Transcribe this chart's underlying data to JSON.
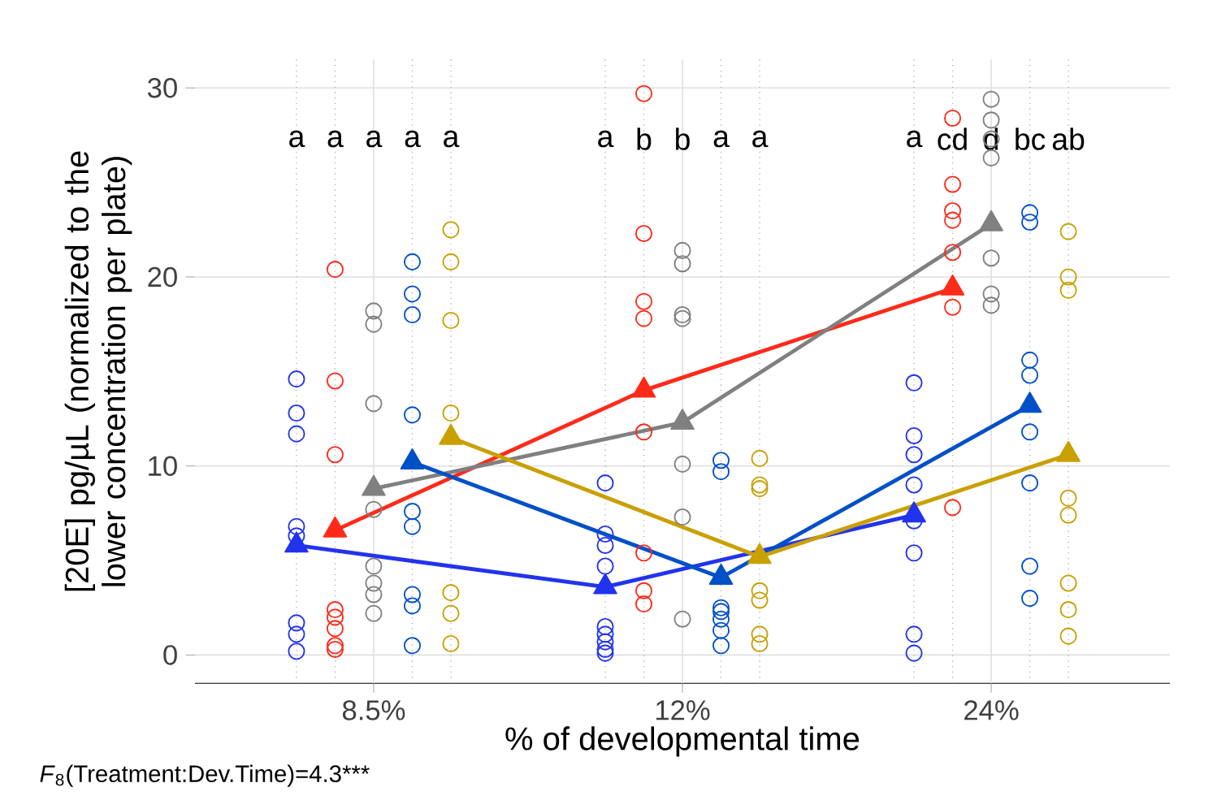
{
  "chart_data": {
    "type": "scatter",
    "xlabel": "% of developmental time",
    "ylabel": "[20E] pg/µL (normalized to the lower concentration per plate)",
    "categories": [
      null,
      null,
      "8.5%",
      null,
      null,
      null,
      null,
      null,
      null,
      null,
      "12%",
      null,
      null,
      null,
      null,
      null,
      null,
      null,
      "24%",
      null,
      null
    ],
    "ylim": [
      -1.5,
      31.5
    ],
    "yticks": [
      0,
      10,
      20,
      30
    ],
    "grid": true,
    "marker": "circle",
    "series": [
      {
        "colors": [
          "#2233ee",
          "#ff2a1a",
          "#808080",
          "#0050c8",
          "#c9a000",
          null,
          null,
          null,
          "#2233ee",
          "#ff2a1a",
          "#808080",
          "#0050c8",
          "#c9a000",
          null,
          null,
          null,
          "#2233ee",
          "#ff2a1a",
          "#808080",
          "#0050c8",
          "#c9a000"
        ],
        "values": [
          14.6,
          20.4,
          18.2,
          20.8,
          22.5,
          null,
          null,
          null,
          9.1,
          29.7,
          21.4,
          10.3,
          10.4,
          null,
          null,
          null,
          14.4,
          28.4,
          29.4,
          23.4,
          22.4
        ]
      },
      {
        "colors": [
          "#2233ee",
          "#ff2a1a",
          "#808080",
          "#0050c8",
          "#c9a000",
          null,
          null,
          null,
          "#2233ee",
          "#ff2a1a",
          "#808080",
          "#0050c8",
          "#c9a000",
          null,
          null,
          null,
          "#2233ee",
          "#ff2a1a",
          "#808080",
          "#0050c8",
          "#c9a000"
        ],
        "values": [
          12.8,
          14.5,
          17.5,
          19.1,
          20.8,
          null,
          null,
          null,
          6.4,
          22.3,
          20.7,
          9.7,
          9.0,
          null,
          null,
          null,
          11.6,
          24.9,
          28.3,
          22.9,
          20.0
        ]
      },
      {
        "colors": [
          "#2233ee",
          "#ff2a1a",
          "#808080",
          "#0050c8",
          "#c9a000",
          null,
          null,
          null,
          "#2233ee",
          "#ff2a1a",
          "#808080",
          "#0050c8",
          "#c9a000",
          null,
          null,
          null,
          "#2233ee",
          "#ff2a1a",
          "#808080",
          "#0050c8",
          "#c9a000"
        ],
        "values": [
          11.7,
          10.6,
          13.3,
          18.0,
          17.7,
          null,
          null,
          null,
          5.8,
          18.7,
          18.0,
          2.5,
          8.8,
          null,
          null,
          null,
          10.6,
          23.5,
          27.3,
          15.6,
          19.3
        ]
      },
      {
        "colors": [
          "#2233ee",
          "#ff2a1a",
          "#808080",
          "#0050c8",
          "#c9a000",
          null,
          null,
          null,
          "#2233ee",
          "#ff2a1a",
          "#808080",
          "#0050c8",
          "#c9a000",
          null,
          null,
          null,
          "#2233ee",
          "#ff2a1a",
          "#808080",
          "#0050c8",
          "#c9a000"
        ],
        "values": [
          6.8,
          2.4,
          7.7,
          12.7,
          12.8,
          null,
          null,
          null,
          4.7,
          17.8,
          17.8,
          2.3,
          3.4,
          null,
          null,
          null,
          9.0,
          23.0,
          26.3,
          14.8,
          8.3
        ]
      },
      {
        "colors": [
          "#2233ee",
          "#ff2a1a",
          "#808080",
          "#0050c8",
          "#c9a000",
          null,
          null,
          null,
          "#2233ee",
          "#ff2a1a",
          "#808080",
          "#0050c8",
          "#c9a000",
          null,
          null,
          null,
          "#2233ee",
          "#ff2a1a",
          "#808080",
          "#0050c8",
          "#c9a000"
        ],
        "values": [
          6.3,
          2.0,
          4.7,
          7.6,
          3.3,
          null,
          null,
          null,
          1.5,
          11.8,
          10.1,
          1.9,
          2.9,
          null,
          null,
          null,
          7.1,
          21.3,
          21.0,
          11.8,
          7.4
        ]
      },
      {
        "colors": [
          "#2233ee",
          "#ff2a1a",
          "#808080",
          "#0050c8",
          "#c9a000",
          null,
          null,
          null,
          "#2233ee",
          "#ff2a1a",
          "#808080",
          "#0050c8",
          "#c9a000",
          null,
          null,
          null,
          "#2233ee",
          "#ff2a1a",
          "#808080",
          "#0050c8",
          "#c9a000"
        ],
        "values": [
          1.7,
          1.4,
          3.8,
          6.8,
          2.2,
          null,
          null,
          null,
          1.1,
          5.4,
          7.3,
          1.3,
          1.1,
          null,
          null,
          null,
          5.4,
          18.4,
          19.1,
          9.1,
          3.8
        ]
      },
      {
        "colors": [
          "#2233ee",
          "#ff2a1a",
          "#808080",
          "#0050c8",
          "#c9a000",
          null,
          null,
          null,
          "#2233ee",
          "#ff2a1a",
          "#808080",
          "#0050c8",
          "#c9a000",
          null,
          null,
          null,
          "#2233ee",
          "#ff2a1a",
          "#808080",
          "#0050c8",
          "#c9a000"
        ],
        "values": [
          1.1,
          0.5,
          3.2,
          3.2,
          0.6,
          null,
          null,
          null,
          0.7,
          3.4,
          1.9,
          0.5,
          0.6,
          null,
          null,
          null,
          1.1,
          7.8,
          18.5,
          4.7,
          2.4
        ]
      },
      {
        "colors": [
          "#2233ee",
          "#ff2a1a",
          "#808080",
          "#0050c8",
          null,
          null,
          null,
          null,
          "#2233ee",
          "#ff2a1a",
          null,
          null,
          null,
          null,
          null,
          null,
          "#2233ee",
          null,
          null,
          "#0050c8",
          "#c9a000"
        ],
        "values": [
          0.2,
          0.3,
          2.2,
          2.6,
          null,
          null,
          null,
          null,
          0.3,
          2.7,
          null,
          null,
          null,
          null,
          null,
          null,
          0.1,
          null,
          null,
          3.0,
          1.0
        ]
      },
      {
        "colors": [
          null,
          null,
          null,
          "#0050c8",
          null,
          null,
          null,
          null,
          "#2233ee",
          null,
          null,
          null,
          null,
          null,
          null,
          null,
          null,
          null,
          null,
          null,
          null
        ],
        "values": [
          null,
          null,
          null,
          0.5,
          null,
          null,
          null,
          null,
          0.1,
          null,
          null,
          null,
          null,
          null,
          null,
          null,
          null,
          null,
          null,
          null,
          null
        ]
      },
      {
        "type": "line",
        "marker": "triangle",
        "color": "#2233ee",
        "values": [
          5.8,
          null,
          null,
          null,
          null,
          null,
          null,
          null,
          3.6,
          null,
          null,
          null,
          null,
          null,
          null,
          null,
          7.4,
          null,
          null,
          null,
          null
        ]
      },
      {
        "type": "line",
        "marker": "triangle",
        "color": "#ff2a1a",
        "values": [
          null,
          6.6,
          null,
          null,
          null,
          null,
          null,
          null,
          null,
          14.0,
          null,
          null,
          null,
          null,
          null,
          null,
          null,
          19.4,
          null,
          null,
          null
        ]
      },
      {
        "type": "line",
        "marker": "triangle",
        "color": "#808080",
        "values": [
          null,
          null,
          8.8,
          null,
          null,
          null,
          null,
          null,
          null,
          null,
          12.3,
          null,
          null,
          null,
          null,
          null,
          null,
          null,
          22.8,
          null,
          null
        ]
      },
      {
        "type": "line",
        "marker": "triangle",
        "color": "#0050c8",
        "values": [
          null,
          null,
          null,
          10.2,
          null,
          null,
          null,
          null,
          null,
          null,
          null,
          4.1,
          null,
          null,
          null,
          null,
          null,
          null,
          null,
          13.2,
          null
        ]
      },
      {
        "type": "line",
        "marker": "triangle",
        "color": "#c9a000",
        "values": [
          null,
          null,
          null,
          null,
          11.5,
          null,
          null,
          null,
          null,
          null,
          null,
          null,
          5.2,
          null,
          null,
          null,
          null,
          null,
          null,
          null,
          10.6
        ]
      }
    ],
    "annotations": [
      "a",
      "a",
      "a",
      "a",
      "a",
      "a",
      "b",
      "b",
      "a",
      "a",
      "a",
      "cd",
      "d",
      "bc",
      "ab",
      "*F*$_{8}$(Treatment:Dev.Time)=4.3***"
    ]
  }
}
